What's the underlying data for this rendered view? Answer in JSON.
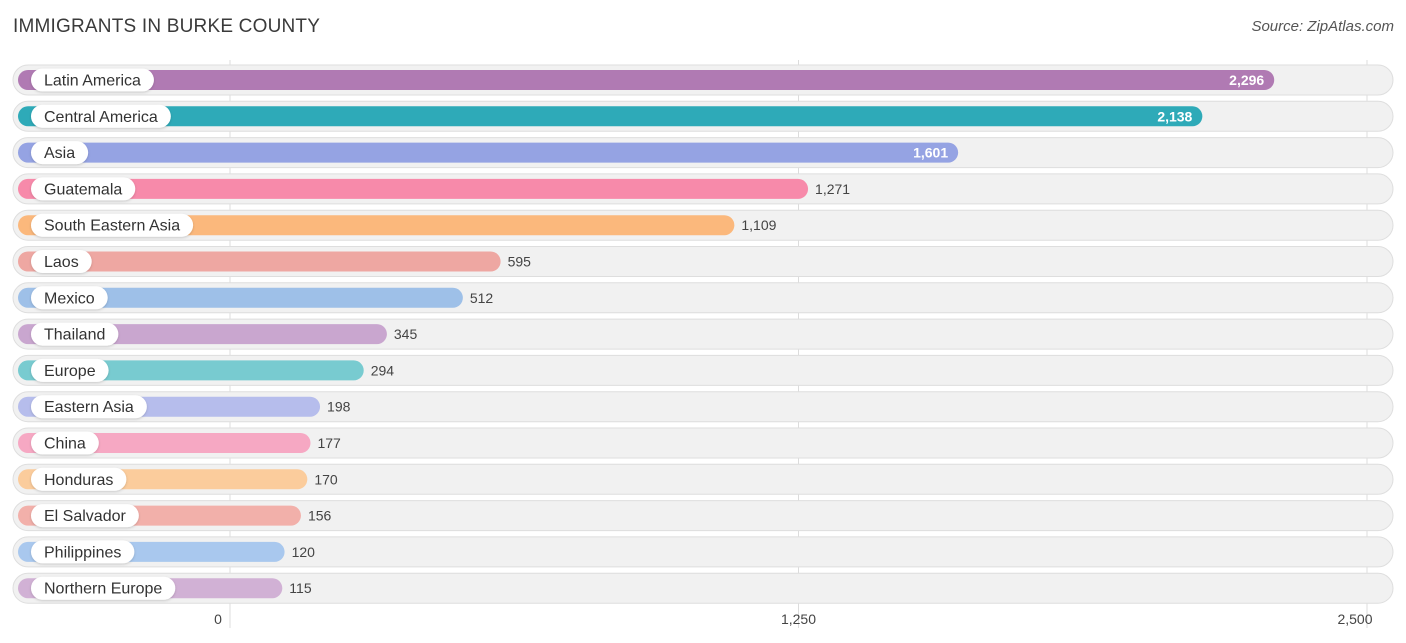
{
  "header": {
    "title": "IMMIGRANTS IN BURKE COUNTY",
    "source": "Source: ZipAtlas.com"
  },
  "chart_data": {
    "type": "bar",
    "orientation": "horizontal",
    "title": "IMMIGRANTS IN BURKE COUNTY",
    "categories": [
      "Latin America",
      "Central America",
      "Asia",
      "Guatemala",
      "South Eastern Asia",
      "Laos",
      "Mexico",
      "Thailand",
      "Europe",
      "Eastern Asia",
      "China",
      "Honduras",
      "El Salvador",
      "Philippines",
      "Northern Europe"
    ],
    "values": [
      2296,
      2138,
      1601,
      1271,
      1109,
      595,
      512,
      345,
      294,
      198,
      177,
      170,
      156,
      120,
      115
    ],
    "value_labels": [
      "2,296",
      "2,138",
      "1,601",
      "1,271",
      "1,109",
      "595",
      "512",
      "345",
      "294",
      "198",
      "177",
      "170",
      "156",
      "120",
      "115"
    ],
    "colors": [
      "#b07ab3",
      "#2eaab8",
      "#95a3e3",
      "#f78aaa",
      "#fbb87c",
      "#eea7a2",
      "#9ec0e8",
      "#c9a6cf",
      "#78cbd0",
      "#b6bdec",
      "#f6a8c3",
      "#fbcc9c",
      "#f2b0aa",
      "#a9c8ee",
      "#d1b1d5"
    ],
    "xlim": [
      0,
      2500
    ],
    "xticks": [
      0,
      1250,
      2500
    ],
    "xtick_labels": [
      "0",
      "1,250",
      "2,500"
    ],
    "grid": true,
    "legend": "none"
  }
}
